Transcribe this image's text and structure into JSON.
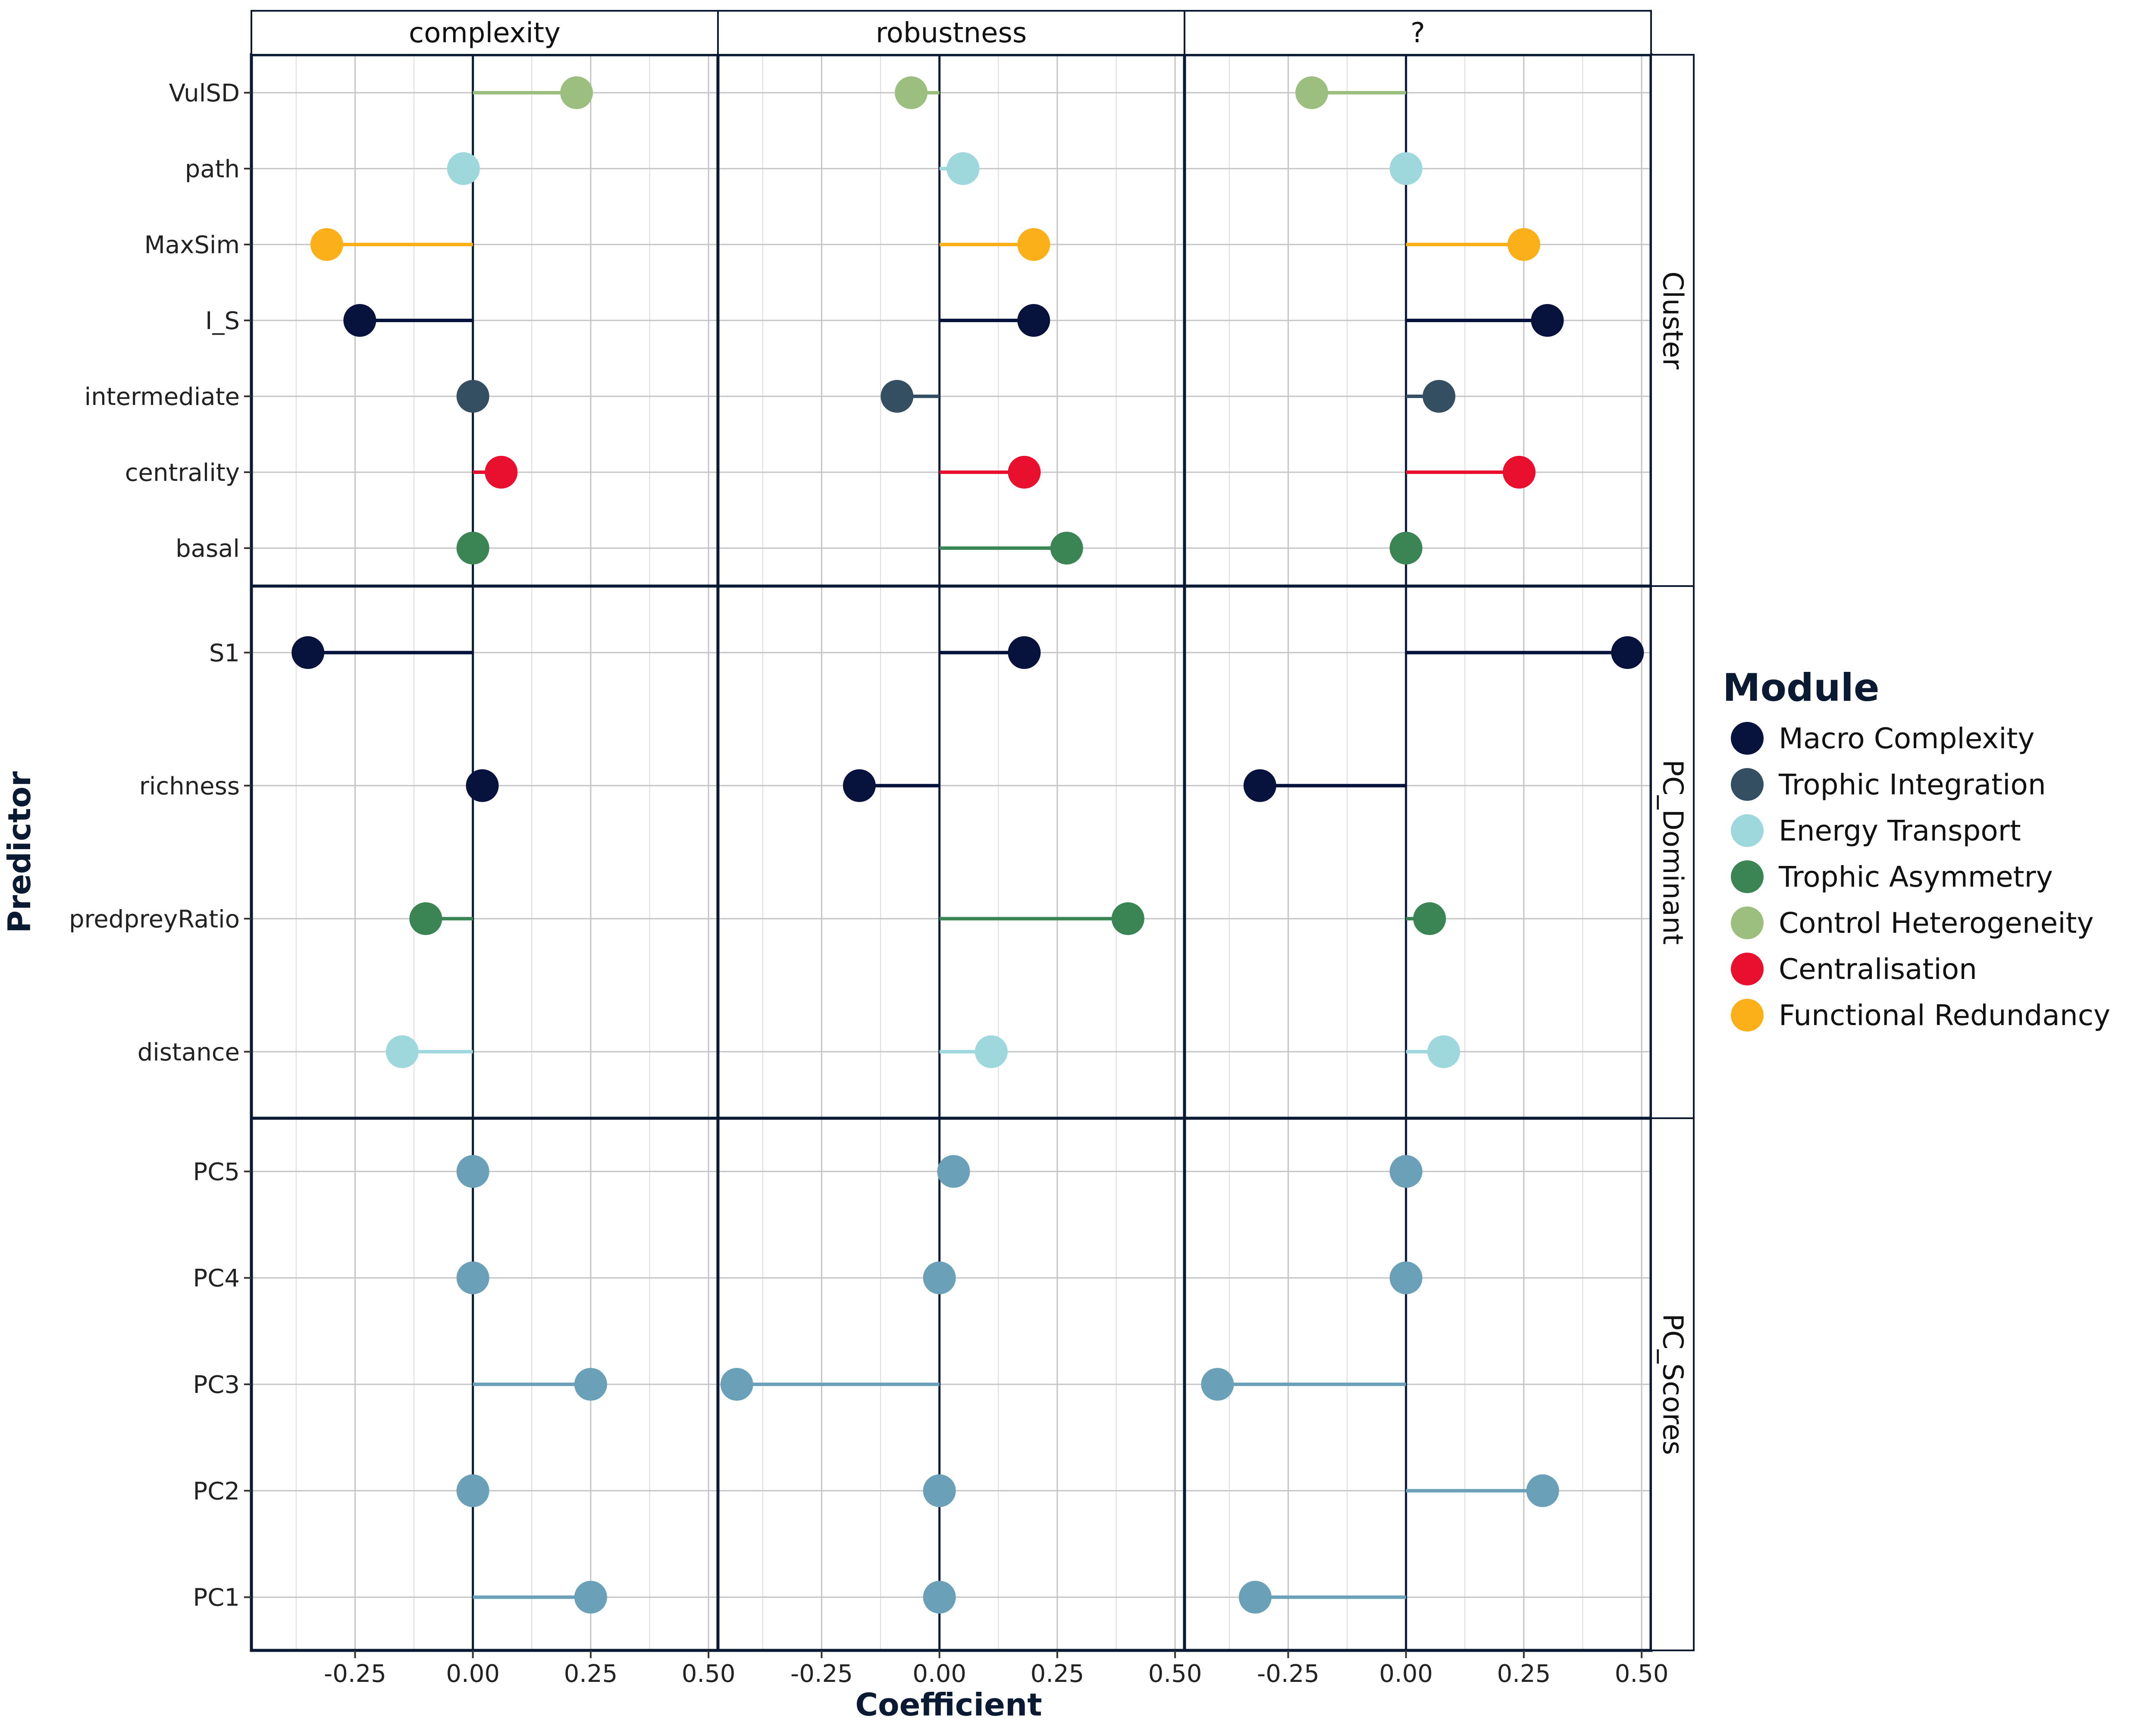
{
  "chart_data": {
    "type": "lollipop",
    "xlabel": "Coefficient",
    "ylabel": "Predictor",
    "xlim": [
      -0.47,
      0.52
    ],
    "x_ticks": [
      -0.25,
      0.0,
      0.25,
      0.5
    ],
    "x_tick_labels": [
      "-0.25",
      "0.00",
      "0.25",
      "0.50"
    ],
    "columns": [
      "complexity",
      "robustness",
      "?"
    ],
    "legend": {
      "title": "Module",
      "placement": "right",
      "entries": [
        {
          "label": "Macro Complexity",
          "color": "#07123d"
        },
        {
          "label": "Trophic Integration",
          "color": "#354f62"
        },
        {
          "label": "Energy Transport",
          "color": "#9ed8dc"
        },
        {
          "label": "Trophic Asymmetry",
          "color": "#3b8555"
        },
        {
          "label": "Control Heterogeneity",
          "color": "#9cbf7f"
        },
        {
          "label": "Centralisation",
          "color": "#e8102e"
        },
        {
          "label": "Functional Redundancy",
          "color": "#fbb01a"
        }
      ]
    },
    "pc_color": "#6aa1b9",
    "rows": [
      {
        "name": "Cluster",
        "predictors": [
          {
            "label": "VulSD",
            "module": "Control Heterogeneity",
            "values": [
              0.22,
              -0.06,
              -0.2
            ]
          },
          {
            "label": "path",
            "module": "Energy Transport",
            "values": [
              -0.02,
              0.05,
              0.0
            ]
          },
          {
            "label": "MaxSim",
            "module": "Functional Redundancy",
            "values": [
              -0.31,
              0.2,
              0.25
            ]
          },
          {
            "label": "I_S",
            "module": "Macro Complexity",
            "values": [
              -0.24,
              0.2,
              0.3
            ]
          },
          {
            "label": "intermediate",
            "module": "Trophic Integration",
            "values": [
              0.0,
              -0.09,
              0.07
            ]
          },
          {
            "label": "centrality",
            "module": "Centralisation",
            "values": [
              0.06,
              0.18,
              0.24
            ]
          },
          {
            "label": "basal",
            "module": "Trophic Asymmetry",
            "values": [
              0.0,
              0.27,
              0.0
            ]
          }
        ]
      },
      {
        "name": "PC_Dominant",
        "predictors": [
          {
            "label": "S1",
            "module": "Macro Complexity",
            "values": [
              -0.35,
              0.18,
              0.47
            ]
          },
          {
            "label": "richness",
            "module": "Macro Complexity",
            "values": [
              0.02,
              -0.17,
              -0.31
            ]
          },
          {
            "label": "predpreyRatio",
            "module": "Trophic Asymmetry",
            "values": [
              -0.1,
              0.4,
              0.05
            ]
          },
          {
            "label": "distance",
            "module": "Energy Transport",
            "values": [
              -0.15,
              0.11,
              0.08
            ]
          }
        ]
      },
      {
        "name": "PC_Scores",
        "predictors": [
          {
            "label": "PC5",
            "module": null,
            "values": [
              0.0,
              0.03,
              0.0
            ]
          },
          {
            "label": "PC4",
            "module": null,
            "values": [
              0.0,
              0.0,
              0.0
            ]
          },
          {
            "label": "PC3",
            "module": null,
            "values": [
              0.25,
              -0.43,
              -0.4
            ]
          },
          {
            "label": "PC2",
            "module": null,
            "values": [
              0.0,
              0.0,
              0.29
            ]
          },
          {
            "label": "PC1",
            "module": null,
            "values": [
              0.25,
              0.0,
              -0.32
            ]
          }
        ]
      }
    ]
  }
}
